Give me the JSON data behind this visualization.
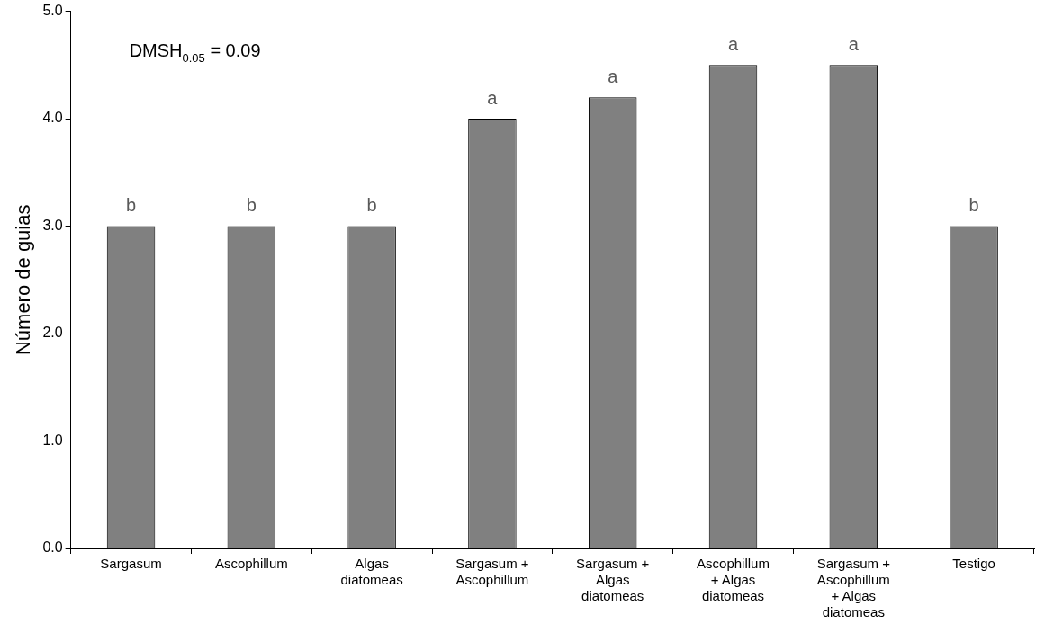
{
  "chart_data": {
    "type": "bar",
    "ylabel": "Número de guias",
    "categories": [
      "Sargasum",
      "Ascophillum",
      "Algas diatomeas",
      "Sargasum + Ascophillum",
      "Sargasum + Algas diatomeas",
      "Ascophillum + Algas diatomeas",
      "Sargasum + Ascophillum + Algas diatomeas",
      "Testigo"
    ],
    "values": [
      3,
      3,
      3,
      4,
      4.2,
      4.5,
      4.5,
      3
    ],
    "value_labels": [
      "b",
      "b",
      "b",
      "a",
      "a",
      "a",
      "a",
      "b"
    ],
    "color": "#808080",
    "ylim": [
      0,
      5
    ],
    "yticks": [
      {
        "value": 0,
        "label": "0.0"
      },
      {
        "value": 1,
        "label": "1.0"
      },
      {
        "value": 2,
        "label": "2.0"
      },
      {
        "value": 3,
        "label": "3.0"
      },
      {
        "value": 4,
        "label": "4.0"
      },
      {
        "value": 5,
        "label": "5.0"
      }
    ],
    "grid": false,
    "legend": false,
    "annotations": [
      "DMSH$_{0.05}$ = 0.09"
    ]
  }
}
